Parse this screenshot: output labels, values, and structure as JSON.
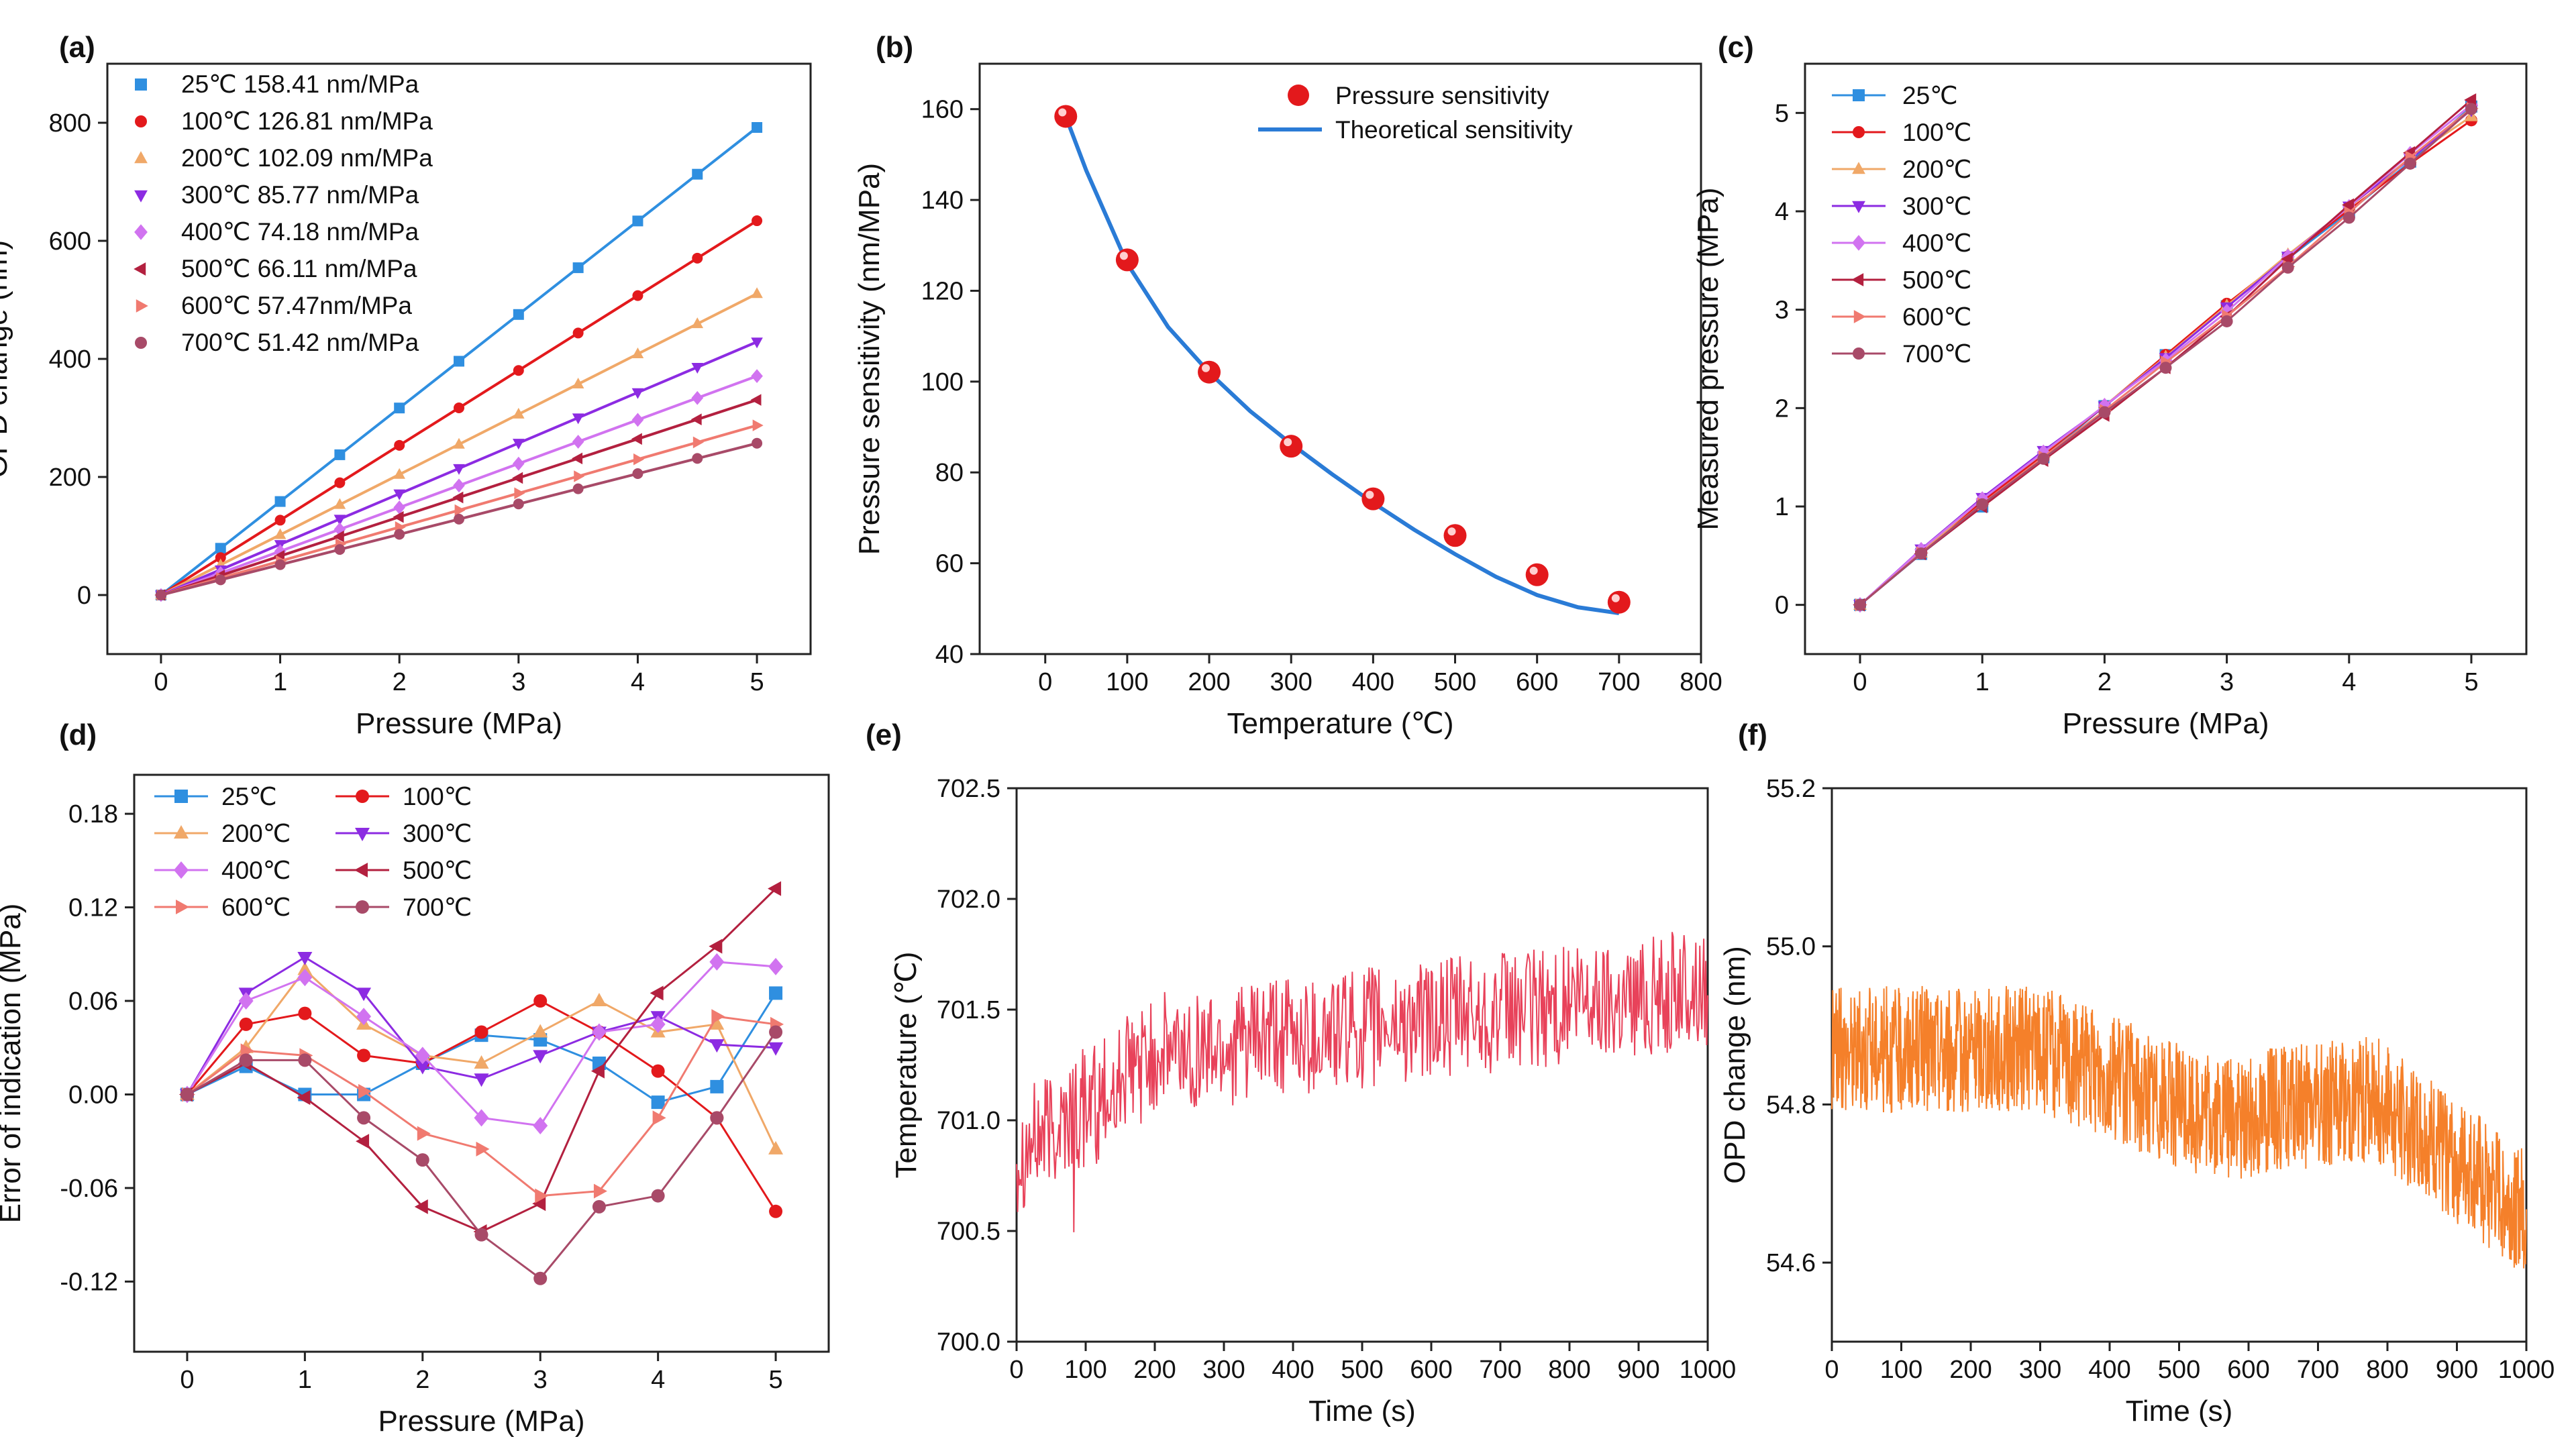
{
  "figure": {
    "panel_letters": [
      "(a)",
      "(b)",
      "(c)",
      "(d)",
      "(e)",
      "(f)"
    ]
  },
  "temps": [
    "25℃",
    "100℃",
    "200℃",
    "300℃",
    "400℃",
    "500℃",
    "600℃",
    "700℃"
  ],
  "series_colors": [
    "#2f8fe0",
    "#e3191c",
    "#f0a868",
    "#8c2be2",
    "#d173f0",
    "#b3203f",
    "#f07a70",
    "#a84a68"
  ],
  "series_markers": [
    "square",
    "circle",
    "triangle-up",
    "triangle-down",
    "diamond",
    "triangle-left",
    "triangle-right",
    "circle"
  ],
  "pressures": [
    0,
    0.5,
    1,
    1.5,
    2,
    2.5,
    3,
    3.5,
    4,
    4.5,
    5
  ],
  "chart_data": [
    {
      "panel": "(a)",
      "type": "line",
      "xlabel": "Pressure (MPa)",
      "ylabel": "OPD change (nm)",
      "xlim": [
        -0.45,
        5.45
      ],
      "ylim": [
        -100,
        900
      ],
      "xticks": [
        0,
        1,
        2,
        3,
        4,
        5
      ],
      "yticks": [
        0,
        200,
        400,
        600,
        800
      ],
      "legend_labels": [
        "25℃   158.41 nm/MPa",
        "100℃  126.81 nm/MPa",
        "200℃  102.09 nm/MPa",
        "300℃  85.77 nm/MPa",
        "400℃  74.18 nm/MPa",
        "500℃  66.11 nm/MPa",
        "600℃  57.47nm/MPa",
        "700℃  51.42 nm/MPa"
      ],
      "slopes": [
        158.41,
        126.81,
        102.09,
        85.77,
        74.18,
        66.11,
        57.47,
        51.42
      ]
    },
    {
      "panel": "(b)",
      "type": "scatter+line",
      "xlabel": "Temperature (℃)",
      "ylabel": "Pressure sensitivity (nm/MPa)",
      "xlim": [
        -80,
        800
      ],
      "ylim": [
        40,
        170
      ],
      "xticks": [
        0,
        100,
        200,
        300,
        400,
        500,
        600,
        700,
        800
      ],
      "yticks": [
        40,
        60,
        80,
        100,
        120,
        140,
        160
      ],
      "points_x": [
        25,
        100,
        200,
        300,
        400,
        500,
        600,
        700
      ],
      "points_y": [
        158.41,
        126.81,
        102.09,
        85.77,
        74.18,
        66.11,
        57.47,
        51.42
      ],
      "curve_x": [
        25,
        50,
        100,
        150,
        200,
        250,
        300,
        350,
        400,
        450,
        500,
        550,
        600,
        650,
        700
      ],
      "curve_y": [
        158.4,
        146.5,
        126.0,
        112.0,
        102.0,
        93.5,
        86.3,
        79.6,
        73.3,
        67.4,
        62.0,
        57.0,
        53.0,
        50.3,
        49.0
      ],
      "legend_labels": [
        "Pressure sensitivity",
        "Theoretical sensitivity"
      ],
      "point_color": "#e3191c",
      "curve_color": "#2a7bd6"
    },
    {
      "panel": "(c)",
      "type": "line",
      "xlabel": "Pressure (MPa)",
      "ylabel": "Measured pressure (MPa)",
      "xlim": [
        -0.45,
        5.45
      ],
      "ylim": [
        -0.5,
        5.5
      ],
      "xticks": [
        0,
        1,
        2,
        3,
        4,
        5
      ],
      "yticks": [
        0,
        1,
        2,
        3,
        4,
        5
      ],
      "errors": [
        [
          0,
          0.018,
          0,
          0,
          0.02,
          0.038,
          0.035,
          0.02,
          -0.005,
          0.005,
          0.065
        ],
        [
          0,
          0.045,
          0.052,
          0.025,
          0.02,
          0.04,
          0.06,
          0.04,
          0.015,
          -0.015,
          -0.075
        ],
        [
          0,
          0.03,
          0.08,
          0.045,
          0.025,
          0.02,
          0.04,
          0.06,
          0.04,
          0.045,
          -0.035
        ],
        [
          0,
          0.065,
          0.088,
          0.065,
          0.018,
          0.01,
          0.025,
          0.04,
          0.05,
          0.032,
          0.03
        ],
        [
          0,
          0.06,
          0.075,
          0.05,
          0.025,
          -0.015,
          -0.02,
          0.04,
          0.045,
          0.085,
          0.082
        ],
        [
          0,
          0.02,
          -0.002,
          -0.03,
          -0.072,
          -0.088,
          -0.07,
          0.015,
          0.065,
          0.095,
          0.132
        ],
        [
          0,
          0.028,
          0.025,
          0.002,
          -0.025,
          -0.035,
          -0.065,
          -0.062,
          -0.015,
          0.05,
          0.045
        ],
        [
          0,
          0.022,
          0.022,
          -0.015,
          -0.042,
          -0.09,
          -0.118,
          -0.072,
          -0.065,
          -0.015,
          0.04
        ]
      ]
    },
    {
      "panel": "(d)",
      "type": "line",
      "xlabel": "Pressure (MPa)",
      "ylabel": "Error of indication (MPa)",
      "xlim": [
        -0.45,
        5.45
      ],
      "ylim": [
        -0.165,
        0.205
      ],
      "xticks": [
        0,
        1,
        2,
        3,
        4,
        5
      ],
      "yticks": [
        -0.12,
        -0.06,
        0,
        0.06,
        0.12,
        0.18
      ],
      "ytick_labels": [
        "-0.12",
        "-0.06",
        "0.00",
        "0.06",
        "0.12",
        "0.18"
      ]
    },
    {
      "panel": "(e)",
      "type": "line",
      "xlabel": "Time (s)",
      "ylabel": "Temperature (℃)",
      "xlim": [
        0,
        1000
      ],
      "ylim": [
        700.0,
        702.5
      ],
      "xticks": [
        0,
        100,
        200,
        300,
        400,
        500,
        600,
        700,
        800,
        900,
        1000
      ],
      "yticks": [
        700.0,
        700.5,
        701.0,
        701.5,
        702.0,
        702.5
      ],
      "ytick_labels": [
        "700.0",
        "700.5",
        "701.0",
        "701.5",
        "702.0",
        "702.5"
      ],
      "color": "#e8425a",
      "range_min": 700.35,
      "range_max": 702.08
    },
    {
      "panel": "(f)",
      "type": "line",
      "xlabel": "Time (s)",
      "ylabel": "OPD change (nm)",
      "xlim": [
        0,
        1000
      ],
      "ylim": [
        54.5,
        55.2
      ],
      "xticks": [
        0,
        100,
        200,
        300,
        400,
        500,
        600,
        700,
        800,
        900,
        1000
      ],
      "yticks": [
        54.6,
        54.8,
        55.0,
        55.2
      ],
      "ytick_labels": [
        "54.6",
        "54.8",
        "55.0",
        "55.2"
      ],
      "color": "#f5802a",
      "range_min": 54.55,
      "range_max": 54.98
    }
  ]
}
